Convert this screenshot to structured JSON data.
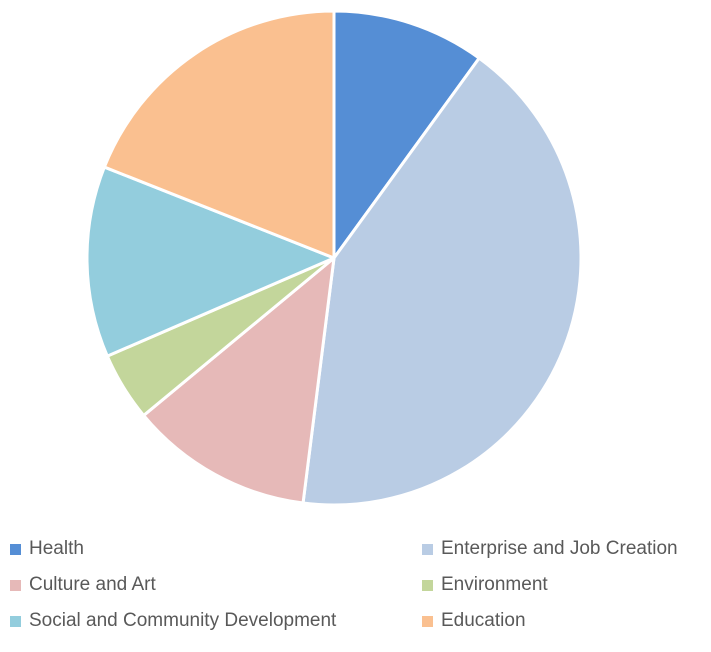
{
  "chart_data": {
    "type": "pie",
    "title": "",
    "categories": [
      "Health",
      "Enterprise and Job Creation",
      "Culture and Art",
      "Environment",
      "Social and Community Development",
      "Education"
    ],
    "values": [
      10,
      42,
      12,
      4.5,
      12.5,
      19
    ],
    "unit": "percent",
    "colors": [
      "#558ed5",
      "#b9cce4",
      "#e6b9b8",
      "#c3d69b",
      "#93cddd",
      "#fac090"
    ],
    "start_angle_deg": 0,
    "direction": "clockwise",
    "legend_position": "bottom",
    "slice_border_color": "#ffffff"
  }
}
